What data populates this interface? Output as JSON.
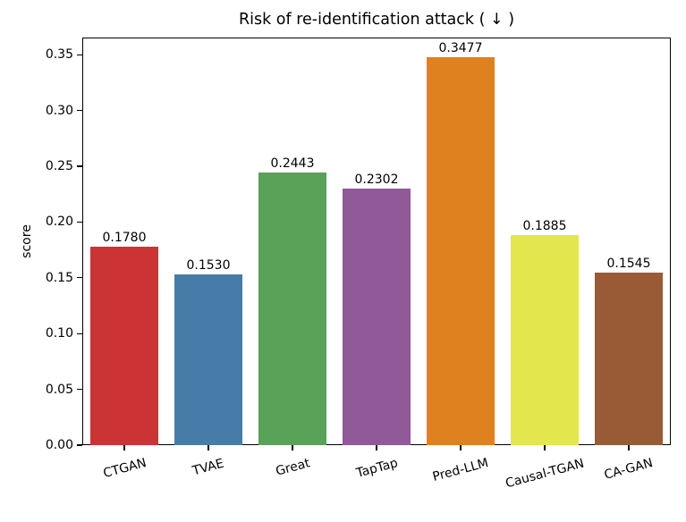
{
  "chart_data": {
    "type": "bar",
    "title": "Risk of re-identification attack ( ↓ )",
    "xlabel": "",
    "ylabel": "score",
    "ylim": [
      0,
      0.3654
    ],
    "yticks": [
      "0.00",
      "0.05",
      "0.10",
      "0.15",
      "0.20",
      "0.25",
      "0.30",
      "0.35"
    ],
    "categories": [
      "CTGAN",
      "TVAE",
      "Great",
      "TapTap",
      "Pred-LLM",
      "Causal-TGAN",
      "CA-GAN"
    ],
    "values": [
      0.178,
      0.153,
      0.2443,
      0.2302,
      0.3477,
      0.1885,
      0.1545
    ],
    "value_labels": [
      "0.1780",
      "0.1530",
      "0.2443",
      "0.2302",
      "0.3477",
      "0.1885",
      "0.1545"
    ],
    "colors": [
      "#cb3335",
      "#477ca8",
      "#59a257",
      "#905998",
      "#e0811f",
      "#e4e64e",
      "#995b36"
    ],
    "grid": false,
    "legend": null
  }
}
